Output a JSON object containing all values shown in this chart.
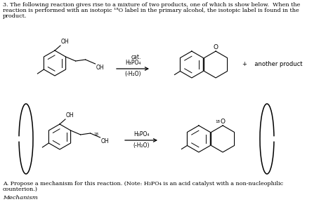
{
  "bg_color": "#ffffff",
  "text_color": "#000000",
  "title_line1": "3. The following reaction gives rise to a mixture of two products, one of which is show below.  When the",
  "title_line2": "reaction is performed with an isotopic ¹⁸O label in the primary alcohol, the isotopic label is found in the",
  "title_line3": "product.",
  "bottom_text1": "A. Propose a mechanism for this reaction. (Note: H₃PO₄ is an acid catalyst with a non-nucleophilic",
  "bottom_text2": "counterion.)",
  "bottom_text3": "Mechanism",
  "reagent_cat": "cat.",
  "reagent1_top": "H₃PO₄",
  "reagent1_bot": "(-H₂O)",
  "reagent2_top": "H₃PO₄",
  "reagent2_bot": "(-H₂O)",
  "plus_text": "+    another product",
  "figsize": [
    4.74,
    2.98
  ],
  "dpi": 100
}
